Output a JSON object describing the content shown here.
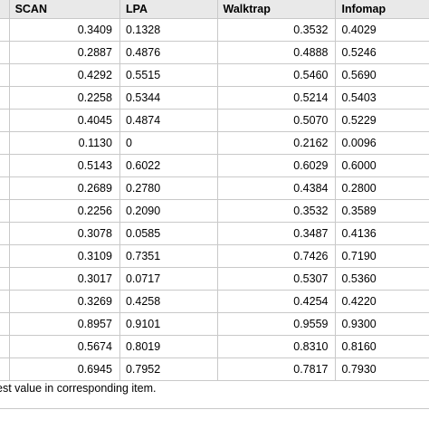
{
  "table": {
    "headers": {
      "scan": "SCAN",
      "lpa": "LPA",
      "walktrap": "Walktrap",
      "infomap": "Infomap"
    },
    "rows": [
      {
        "scan": "0.3409",
        "lpa": "0.1328",
        "walktrap": "0.3532",
        "infomap": "0.4029"
      },
      {
        "scan": "0.2887",
        "lpa": "0.4876",
        "walktrap": "0.4888",
        "infomap": "0.5246"
      },
      {
        "scan": "0.4292",
        "lpa": "0.5515",
        "walktrap": "0.5460",
        "infomap": "0.5690"
      },
      {
        "scan": "0.2258",
        "lpa": "0.5344",
        "walktrap": "0.5214",
        "infomap": "0.5403"
      },
      {
        "scan": "0.4045",
        "lpa": "0.4874",
        "walktrap": "0.5070",
        "infomap": "0.5229"
      },
      {
        "scan": "0.1130",
        "lpa": "0",
        "walktrap": "0.2162",
        "infomap": "0.0096"
      },
      {
        "scan": "0.5143",
        "lpa": "0.6022",
        "walktrap": "0.6029",
        "infomap": "0.6000"
      },
      {
        "scan": "0.2689",
        "lpa": "0.2780",
        "walktrap": "0.4384",
        "infomap": "0.2800"
      },
      {
        "scan": "0.2256",
        "lpa": "0.2090",
        "walktrap": "0.3532",
        "infomap": "0.3589"
      },
      {
        "scan": "0.3078",
        "lpa": "0.0585",
        "walktrap": "0.3487",
        "infomap": "0.4136"
      },
      {
        "scan": "0.3109",
        "lpa": "0.7351",
        "walktrap": "0.7426",
        "infomap": "0.7190"
      },
      {
        "scan": "0.3017",
        "lpa": "0.0717",
        "walktrap": "0.5307",
        "infomap": "0.5360"
      },
      {
        "scan": "0.3269",
        "lpa": "0.4258",
        "walktrap": "0.4254",
        "infomap": "0.4220"
      },
      {
        "scan": "0.8957",
        "lpa": "0.9101",
        "walktrap": "0.9559",
        "infomap": "0.9300"
      },
      {
        "scan": "0.5674",
        "lpa": "0.8019",
        "walktrap": "0.8310",
        "infomap": "0.8160"
      },
      {
        "scan": "0.6945",
        "lpa": "0.7952",
        "walktrap": "0.7817",
        "infomap": "0.7930"
      }
    ]
  },
  "footnote": "est value in corresponding item."
}
